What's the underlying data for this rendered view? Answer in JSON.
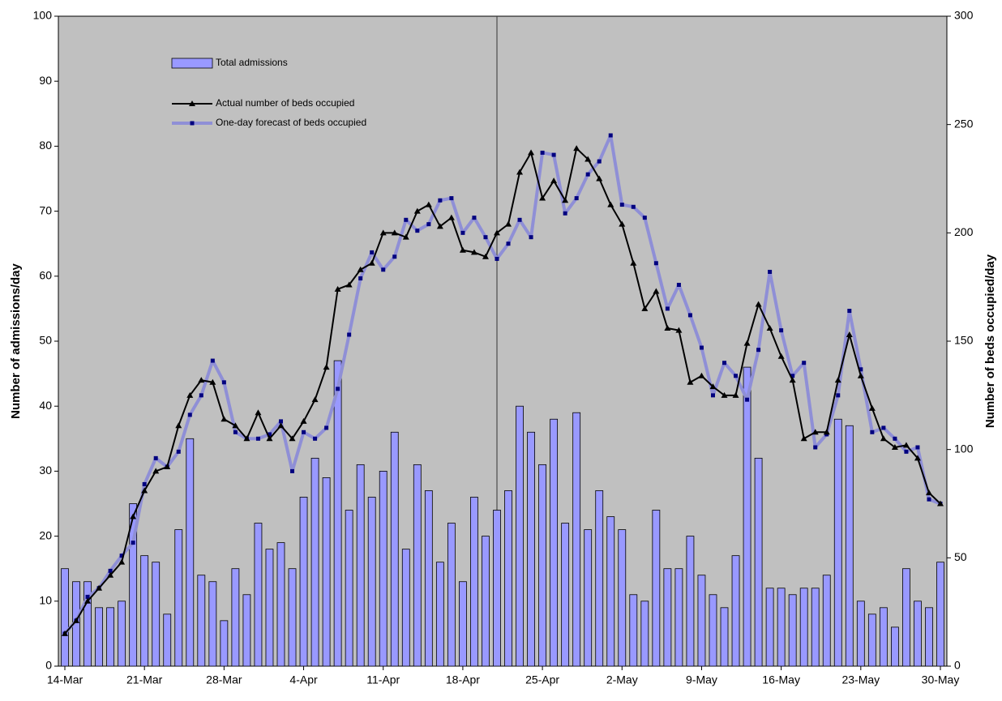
{
  "chart_data": {
    "type": "bar-line",
    "y_label": "Number of admissions/day",
    "y2_label": "Number of beds occupied/day",
    "categories": [
      "14-Mar",
      null,
      null,
      null,
      null,
      null,
      null,
      "21-Mar",
      null,
      null,
      null,
      null,
      null,
      null,
      "28-Mar",
      null,
      null,
      null,
      null,
      null,
      null,
      "4-Apr",
      null,
      null,
      null,
      null,
      null,
      null,
      "11-Apr",
      null,
      null,
      null,
      null,
      null,
      null,
      "18-Apr",
      null,
      null,
      null,
      null,
      null,
      null,
      "25-Apr",
      null,
      null,
      null,
      null,
      null,
      null,
      "2-May",
      null,
      null,
      null,
      null,
      null,
      null,
      "9-May",
      null,
      null,
      null,
      null,
      null,
      null,
      "16-May",
      null,
      null,
      null,
      null,
      null,
      null,
      "23-May",
      null,
      null,
      null,
      null,
      null,
      null,
      "30-May"
    ],
    "ylim": [
      0,
      100
    ],
    "yticks": [
      0,
      10,
      20,
      30,
      40,
      50,
      60,
      70,
      80,
      90,
      100
    ],
    "y2lim": [
      0,
      300
    ],
    "y2ticks": [
      0,
      50,
      100,
      150,
      200,
      250,
      300
    ],
    "series": [
      {
        "name": "Total admissions",
        "type": "bar",
        "color": "#9999ff",
        "values": [
          15,
          13,
          13,
          9,
          9,
          10,
          25,
          17,
          16,
          8,
          21,
          35,
          14,
          13,
          7,
          15,
          11,
          22,
          18,
          19,
          15,
          26,
          32,
          29,
          47,
          24,
          31,
          26,
          30,
          36,
          18,
          31,
          27,
          16,
          22,
          13,
          26,
          20,
          24,
          27,
          40,
          36,
          31,
          38,
          22,
          39,
          21,
          27,
          23,
          21,
          11,
          10,
          24,
          15,
          15,
          20,
          14,
          11,
          9,
          17,
          46,
          32,
          12,
          12,
          11,
          12,
          12,
          14,
          38,
          37,
          10,
          8,
          9,
          6,
          15,
          10,
          9,
          16
        ]
      },
      {
        "name": "Actual number of beds occupied",
        "type": "line",
        "axis": "y2",
        "color": "#000000",
        "values": [
          15,
          21,
          30,
          36,
          42,
          48,
          69,
          81,
          90,
          92,
          111,
          125,
          132,
          131,
          114,
          111,
          105,
          117,
          105,
          111,
          105,
          113,
          123,
          138,
          174,
          176,
          183,
          186,
          200,
          200,
          198,
          210,
          213,
          203,
          207,
          192,
          191,
          189,
          200,
          204,
          228,
          237,
          216,
          224,
          215,
          239,
          234,
          225,
          213,
          204,
          186,
          165,
          173,
          156,
          155,
          131,
          134,
          129,
          125,
          125,
          149,
          167,
          156,
          143,
          132,
          105,
          108,
          108,
          132,
          153,
          134,
          119,
          105,
          101,
          102,
          96,
          80,
          75
        ]
      },
      {
        "name": "One-day forecast of beds occupied",
        "type": "line",
        "axis": "y2",
        "color": "#8f8fd6",
        "values": [
          15,
          21,
          32,
          36,
          44,
          51,
          57,
          84,
          96,
          92,
          99,
          116,
          125,
          141,
          131,
          108,
          105,
          105,
          107,
          113,
          90,
          108,
          105,
          110,
          128,
          153,
          179,
          191,
          183,
          189,
          206,
          201,
          204,
          215,
          216,
          200,
          207,
          198,
          188,
          195,
          206,
          198,
          237,
          236,
          209,
          216,
          227,
          233,
          245,
          213,
          212,
          207,
          186,
          165,
          176,
          162,
          147,
          125,
          140,
          134,
          123,
          146,
          182,
          155,
          134,
          140,
          101,
          107,
          125,
          164,
          137,
          108,
          110,
          105,
          99,
          101,
          77,
          75
        ]
      }
    ]
  }
}
